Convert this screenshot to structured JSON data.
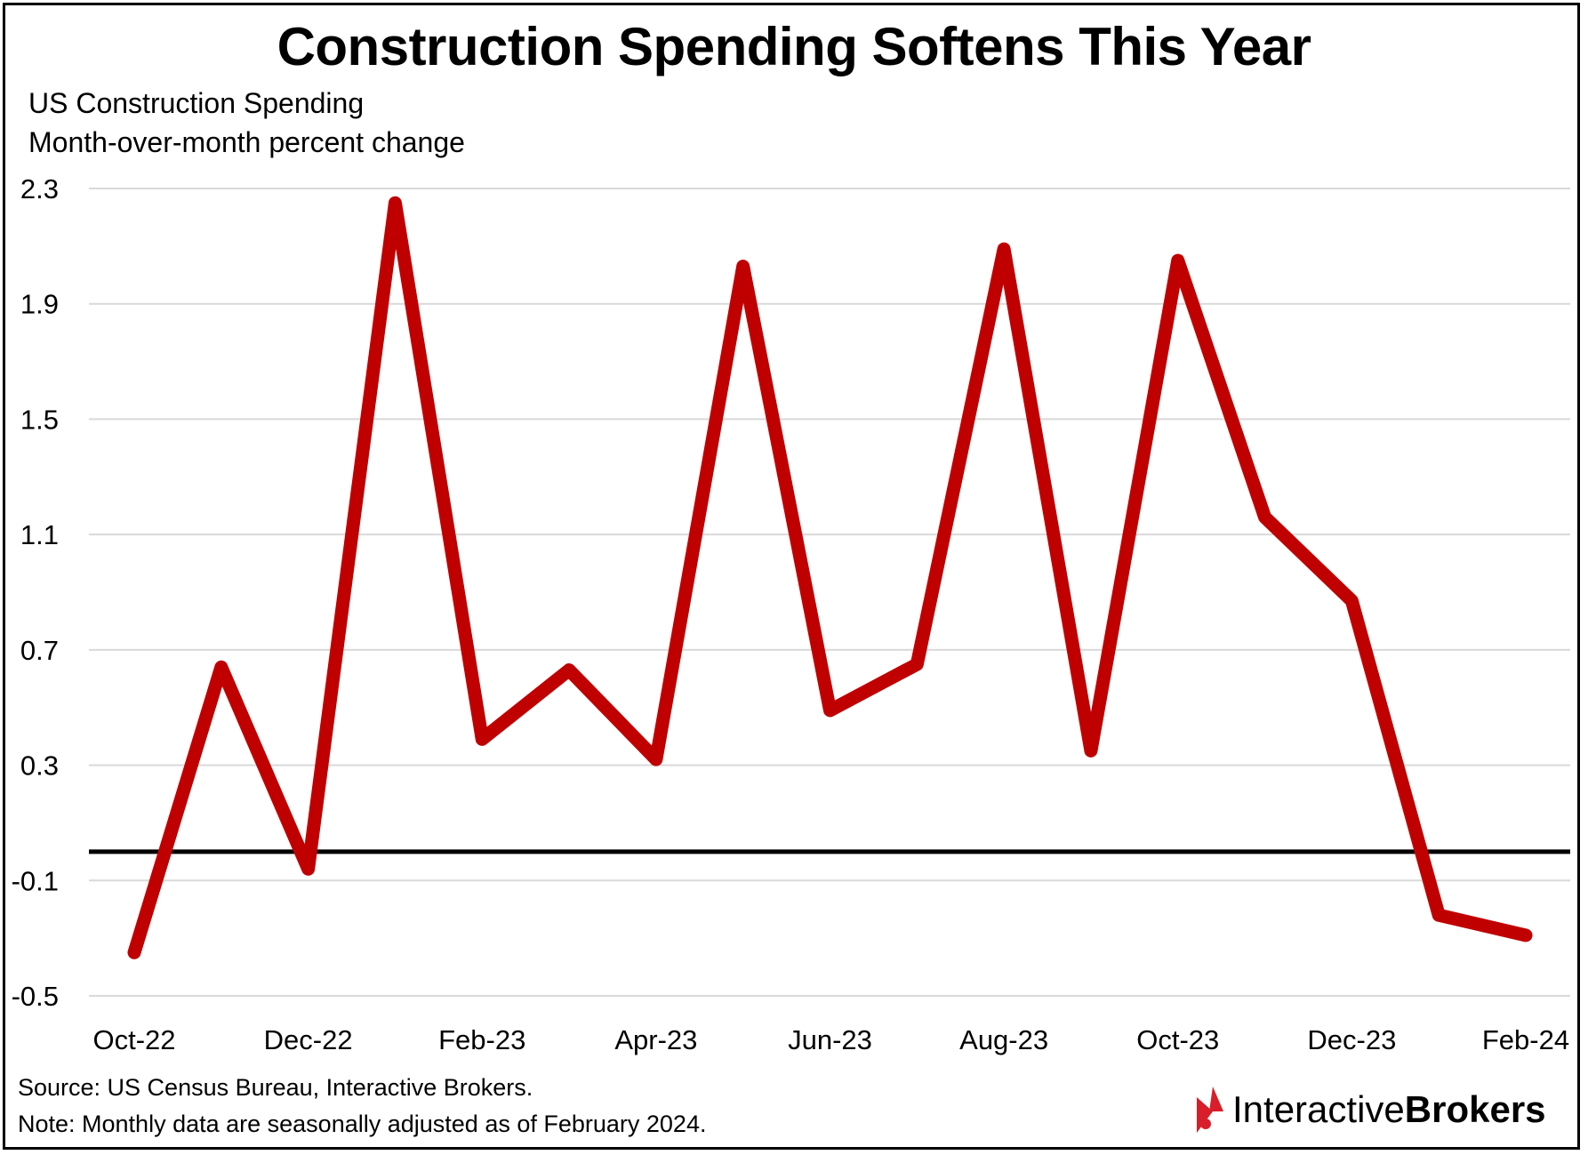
{
  "header": {
    "title": "Construction Spending Softens This Year",
    "subtitle_1": "US Construction Spending",
    "subtitle_2": "Month-over-month percent change"
  },
  "footer": {
    "source": "Source: US Census Bureau, Interactive Brokers.",
    "note": "Note: Monthly data are seasonally adjusted as of February 2024."
  },
  "logo": {
    "text_regular": "Interactive",
    "text_bold": "Brokers"
  },
  "colors": {
    "line": "#c00000",
    "zero_line": "#000000",
    "grid": "#d9d9d9",
    "logo_red": "#d81e2a"
  },
  "chart_data": {
    "type": "line",
    "ylim": [
      -0.5,
      2.3
    ],
    "yticks": [
      "2.3",
      "1.9",
      "1.5",
      "1.1",
      "0.7",
      "0.3",
      "-0.1",
      "-0.5"
    ],
    "ytick_values": [
      2.3,
      1.9,
      1.5,
      1.1,
      0.7,
      0.3,
      -0.1,
      -0.5
    ],
    "xtick_labels": [
      "Oct-22",
      "Dec-22",
      "Feb-23",
      "Apr-23",
      "Jun-23",
      "Aug-23",
      "Oct-23",
      "Dec-23",
      "Feb-24"
    ],
    "x": [
      "Oct-22",
      "Nov-22",
      "Dec-22",
      "Jan-23",
      "Feb-23",
      "Mar-23",
      "Apr-23",
      "May-23",
      "Jun-23",
      "Jul-23",
      "Aug-23",
      "Sep-23",
      "Oct-23",
      "Nov-23",
      "Dec-23",
      "Jan-24",
      "Feb-24"
    ],
    "series": [
      {
        "values": [
          -0.35,
          0.64,
          -0.06,
          2.25,
          0.39,
          0.63,
          0.32,
          2.03,
          0.49,
          0.65,
          2.09,
          0.35,
          2.05,
          1.16,
          0.87,
          -0.22,
          -0.29
        ]
      }
    ],
    "zero_line": 0,
    "grid": true
  }
}
